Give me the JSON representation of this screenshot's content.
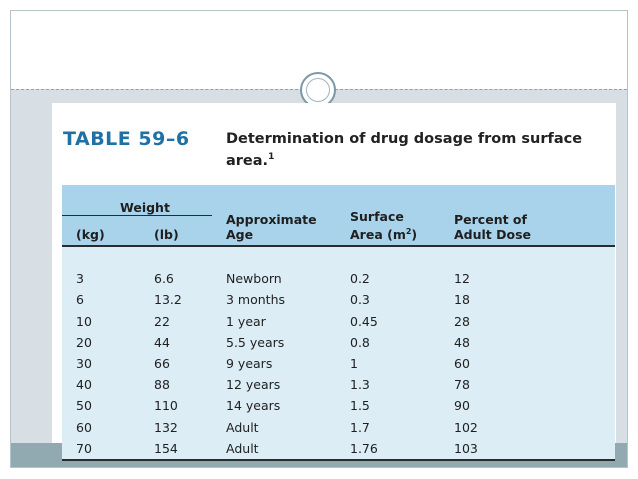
{
  "table": {
    "number": "TABLE 59–6",
    "title": "Determination of drug dosage from surface area.",
    "footnote_mark": "1",
    "weight_group": "Weight",
    "headers": {
      "kg": "(kg)",
      "lb": "(lb)",
      "age_line1": "Approximate",
      "age_line2": "Age",
      "surface_line1": "Surface",
      "surface_line2": "Area (m",
      "surface_sup": "2",
      "surface_close": ")",
      "percent_line1": "Percent of",
      "percent_line2": "Adult Dose"
    },
    "rows": [
      {
        "kg": "3",
        "lb": "6.6",
        "age": "Newborn",
        "area": "0.2",
        "percent": "12"
      },
      {
        "kg": "6",
        "lb": "13.2",
        "age": "3 months",
        "area": "0.3",
        "percent": "18"
      },
      {
        "kg": "10",
        "lb": "22",
        "age": "1 year",
        "area": "0.45",
        "percent": "28"
      },
      {
        "kg": "20",
        "lb": "44",
        "age": "5.5 years",
        "area": "0.8",
        "percent": "48"
      },
      {
        "kg": "30",
        "lb": "66",
        "age": "9 years",
        "area": "1",
        "percent": "60"
      },
      {
        "kg": "40",
        "lb": "88",
        "age": "12 years",
        "area": "1.3",
        "percent": "78"
      },
      {
        "kg": "50",
        "lb": "110",
        "age": "14 years",
        "area": "1.5",
        "percent": "90"
      },
      {
        "kg": "60",
        "lb": "132",
        "age": "Adult",
        "area": "1.7",
        "percent": "102"
      },
      {
        "kg": "70",
        "lb": "154",
        "age": "Adult",
        "area": "1.76",
        "percent": "103"
      }
    ]
  },
  "colors": {
    "title_number": "#1f71a6",
    "header_bg": "#a8d3eb",
    "body_bg": "#dcedf6",
    "slide_bg": "#d8dfe4",
    "footer_bar": "#91a9b1"
  }
}
